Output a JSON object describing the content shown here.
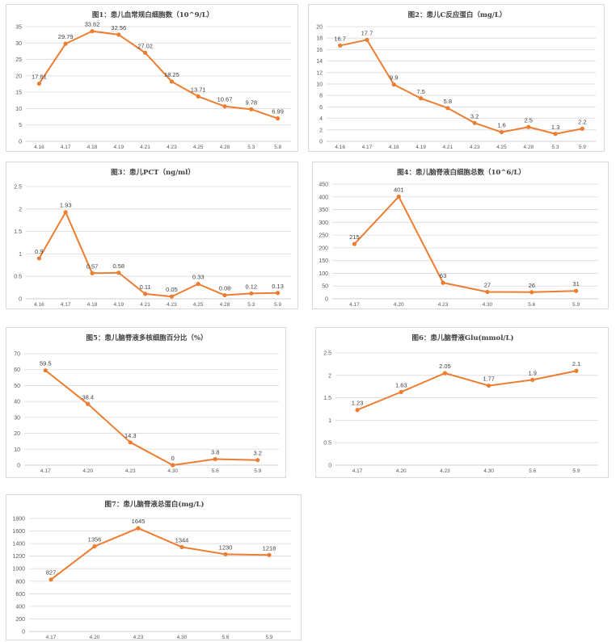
{
  "colors": {
    "series": "#ED7D31",
    "grid": "#D9D9D9",
    "text": "#595959"
  },
  "chart_data": [
    {
      "type": "line",
      "title": "图1：患儿血常规白细胞数（10^9/L）",
      "categories": [
        "4.16",
        "4.17",
        "4.18",
        "4.19",
        "4.21",
        "4.23",
        "4.25",
        "4.28",
        "5.3",
        "5.8"
      ],
      "values": [
        17.61,
        29.79,
        33.62,
        32.56,
        27.02,
        18.25,
        13.71,
        10.67,
        9.78,
        6.99
      ],
      "labels": [
        "17.61",
        "29.79",
        "33.62",
        "32.56",
        "27.02",
        "18.25",
        "13.71",
        "10.67",
        "9.78",
        "6.99"
      ],
      "yticks": [
        "0",
        "5",
        "10",
        "15",
        "20",
        "25",
        "30",
        "35"
      ],
      "ylim": [
        0,
        35
      ],
      "grid": true,
      "legend": "none"
    },
    {
      "type": "line",
      "title": "图2：患儿C反应蛋白（mg/L）",
      "categories": [
        "4.16",
        "4.17",
        "4.18",
        "4.19",
        "4.21",
        "4.23",
        "4.25",
        "4.28",
        "5.3",
        "5.9"
      ],
      "values": [
        16.7,
        17.7,
        9.9,
        7.5,
        5.8,
        3.2,
        1.6,
        2.5,
        1.3,
        2.2
      ],
      "labels": [
        "16.7",
        "17.7",
        "9.9",
        "7.5",
        "5.8",
        "3.2",
        "1.6",
        "2.5",
        "1.3",
        "2.2"
      ],
      "yticks": [
        "0",
        "2",
        "4",
        "6",
        "8",
        "10",
        "12",
        "14",
        "16",
        "18",
        "20"
      ],
      "ylim": [
        0,
        20
      ],
      "grid": true,
      "legend": "none"
    },
    {
      "type": "line",
      "title": "图3：患儿PCT（ng/ml）",
      "categories": [
        "4.16",
        "4.17",
        "4.18",
        "4.19",
        "4.21",
        "4.23",
        "4.25",
        "4.28",
        "5.3",
        "5.9"
      ],
      "values": [
        0.9,
        1.93,
        0.57,
        0.58,
        0.11,
        0.05,
        0.33,
        0.08,
        0.12,
        0.13
      ],
      "labels": [
        "0.9",
        "1.93",
        "0.57",
        "0.58",
        "0.11",
        "0.05",
        "0.33",
        "0.08",
        "0.12",
        "0.13"
      ],
      "yticks": [
        "0",
        "0.5",
        "1",
        "1.5",
        "2",
        "2.5"
      ],
      "ylim": [
        0,
        2.5
      ],
      "grid": true,
      "legend": "none"
    },
    {
      "type": "line",
      "title": "图4：患儿脑脊液白细胞总数（10^6/L）",
      "categories": [
        "4.17",
        "4.20",
        "4.23",
        "4.30",
        "5.6",
        "5.9"
      ],
      "values": [
        215,
        401,
        63,
        27,
        26,
        31
      ],
      "labels": [
        "215",
        "401",
        "63",
        "27",
        "26",
        "31"
      ],
      "yticks": [
        "0",
        "50",
        "100",
        "150",
        "200",
        "250",
        "300",
        "350",
        "400",
        "450"
      ],
      "ylim": [
        0,
        450
      ],
      "grid": true,
      "legend": "none"
    },
    {
      "type": "line",
      "title": "图5：患儿脑脊液多核细胞百分比（%）",
      "categories": [
        "4.17",
        "4.20",
        "4.23",
        "4.30",
        "5.6",
        "5.9"
      ],
      "values": [
        59.5,
        38.4,
        14.3,
        0,
        3.8,
        3.2
      ],
      "labels": [
        "59.5",
        "38.4",
        "14.3",
        "0",
        "3.8",
        "3.2"
      ],
      "yticks": [
        "0",
        "10",
        "20",
        "30",
        "40",
        "50",
        "60",
        "70"
      ],
      "ylim": [
        0,
        70
      ],
      "grid": true,
      "legend": "none"
    },
    {
      "type": "line",
      "title": "图6：患儿脑脊液Glu(mmol/L)",
      "categories": [
        "4.17",
        "4.20",
        "4.23",
        "4.30",
        "5.6",
        "5.9"
      ],
      "values": [
        1.23,
        1.63,
        2.05,
        1.77,
        1.9,
        2.1
      ],
      "labels": [
        "1.23",
        "1.63",
        "2.05",
        "1.77",
        "1.9",
        "2.1"
      ],
      "yticks": [
        "0",
        "0.5",
        "1",
        "1.5",
        "2",
        "2.5"
      ],
      "ylim": [
        0,
        2.5
      ],
      "grid": true,
      "legend": "none"
    },
    {
      "type": "line",
      "title": "图7：患儿脑脊液总蛋白(mg/L)",
      "categories": [
        "4.17",
        "4.20",
        "4.23",
        "4.30",
        "5.6",
        "5.9"
      ],
      "values": [
        827,
        1356,
        1645,
        1344,
        1230,
        1218
      ],
      "labels": [
        "827",
        "1356",
        "1645",
        "1344",
        "1230",
        "1218"
      ],
      "yticks": [
        "0",
        "200",
        "400",
        "600",
        "800",
        "1000",
        "1200",
        "1400",
        "1600",
        "1800"
      ],
      "ylim": [
        0,
        1800
      ],
      "grid": true,
      "legend": "none"
    }
  ]
}
